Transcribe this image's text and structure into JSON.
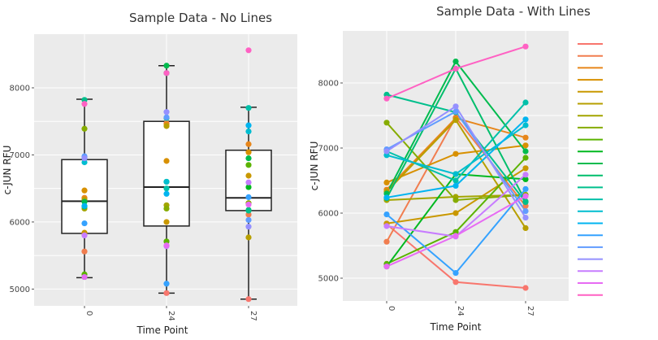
{
  "chart_data": [
    {
      "type": "box",
      "title": "Sample Data - No Lines",
      "xlabel": "Time Point",
      "ylabel": "c-JUN RFU",
      "categories": [
        "0",
        "24",
        "27"
      ],
      "y_ticks": [
        5000,
        6000,
        7000,
        8000
      ],
      "y_tick_labels": [
        "5000",
        "6000",
        "7000",
        "8000"
      ],
      "ylim": [
        4750,
        8800
      ],
      "boxes": [
        {
          "category": "0",
          "min": 5170,
          "q1": 5830,
          "median": 6310,
          "q3": 6930,
          "max": 7830
        },
        {
          "category": "24",
          "min": 4940,
          "q1": 5940,
          "median": 6520,
          "q3": 7500,
          "max": 8330
        },
        {
          "category": "27",
          "min": 4850,
          "q1": 6170,
          "median": 6360,
          "q3": 7070,
          "max": 7710
        }
      ],
      "grid": true,
      "legend": "none"
    },
    {
      "type": "line",
      "title": "Sample Data - With Lines",
      "xlabel": "Time Point",
      "ylabel": "c-JUN RFU",
      "categories": [
        "0",
        "24",
        "27"
      ],
      "y_ticks": [
        5000,
        6000,
        7000,
        8000
      ],
      "y_tick_labels": [
        "5000",
        "6000",
        "7000",
        "8000"
      ],
      "ylim": [
        4650,
        8800
      ],
      "grid": true,
      "legend": "right"
    }
  ],
  "series": [
    {
      "color": "#F8766D",
      "values": [
        5830,
        4940,
        4850
      ]
    },
    {
      "color": "#F17D4F",
      "values": [
        5560,
        7470,
        6110
      ]
    },
    {
      "color": "#E7861B",
      "values": [
        6360,
        7460,
        7160
      ]
    },
    {
      "color": "#D89000",
      "values": [
        6470,
        6910,
        7040
      ]
    },
    {
      "color": "#C99800",
      "values": [
        5840,
        6000,
        6690
      ]
    },
    {
      "color": "#B79F00",
      "values": [
        6330,
        7430,
        5770
      ]
    },
    {
      "color": "#A3A500",
      "values": [
        6200,
        6250,
        6280
      ]
    },
    {
      "color": "#86AC00",
      "values": [
        7390,
        6200,
        6280
      ]
    },
    {
      "color": "#5BB300",
      "values": [
        5220,
        5710,
        6850
      ]
    },
    {
      "color": "#00B81F",
      "values": [
        5180,
        6600,
        6520
      ]
    },
    {
      "color": "#00BB4E",
      "values": [
        6300,
        8330,
        6950
      ]
    },
    {
      "color": "#00BE6C",
      "values": [
        6230,
        8220,
        6180
      ]
    },
    {
      "color": "#00BF8C",
      "values": [
        7820,
        7550,
        6170
      ]
    },
    {
      "color": "#00C0AA",
      "values": [
        6950,
        6500,
        7700
      ]
    },
    {
      "color": "#00BDD0",
      "values": [
        6890,
        6600,
        7350
      ]
    },
    {
      "color": "#00B4F0",
      "values": [
        6240,
        6420,
        7440
      ]
    },
    {
      "color": "#35A2FF",
      "values": [
        5980,
        5080,
        6370
      ]
    },
    {
      "color": "#619CFF",
      "values": [
        6980,
        7560,
        6030
      ]
    },
    {
      "color": "#9590FF",
      "values": [
        6950,
        7640,
        5930
      ]
    },
    {
      "color": "#C77CFF",
      "values": [
        5800,
        5640,
        6590
      ]
    },
    {
      "color": "#E76BF3",
      "values": [
        5180,
        5650,
        6260
      ]
    },
    {
      "color": "#FF61C3",
      "values": [
        7760,
        8220,
        8560
      ]
    }
  ]
}
